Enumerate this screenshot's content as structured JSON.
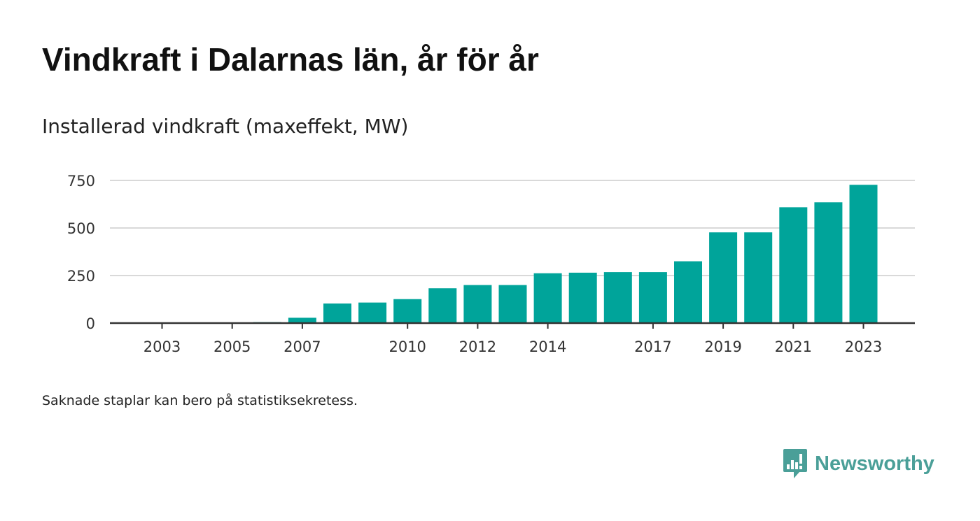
{
  "title": "Vindkraft i Dalarnas län, år för år",
  "subtitle": "Installerad vindkraft (maxeffekt, MW)",
  "footnote": "Saknade staplar kan bero på statistiksekretess.",
  "brand": {
    "name": "Newsworthy",
    "logo_icon": "newsworthy-bars-icon"
  },
  "colors": {
    "bar": "#00a49a",
    "grid": "#d9d9d9",
    "axis": "#333333",
    "brand": "#4a9f98"
  },
  "chart_data": {
    "type": "bar",
    "title": "Vindkraft i Dalarnas län, år för år",
    "subtitle": "Installerad vindkraft (maxeffekt, MW)",
    "xlabel": "",
    "ylabel": "",
    "ylim": [
      0,
      780
    ],
    "yticks": [
      0,
      250,
      500,
      750
    ],
    "ytick_labels": [
      "0",
      "250",
      "500",
      "750"
    ],
    "xtick_labels": [
      "2003",
      "2005",
      "2007",
      "2010",
      "2012",
      "2014",
      "2017",
      "2019",
      "2021",
      "2023"
    ],
    "grid": true,
    "legend": "none",
    "categories": [
      "2003",
      "2004",
      "2005",
      "2006",
      "2007",
      "2008",
      "2009",
      "2010",
      "2011",
      "2012",
      "2013",
      "2014",
      "2015",
      "2016",
      "2017",
      "2018",
      "2019",
      "2020",
      "2021",
      "2022",
      "2023"
    ],
    "values": [
      1,
      1,
      1,
      5,
      28,
      103,
      108,
      126,
      183,
      200,
      200,
      262,
      265,
      268,
      268,
      325,
      477,
      477,
      609,
      635,
      727
    ]
  }
}
